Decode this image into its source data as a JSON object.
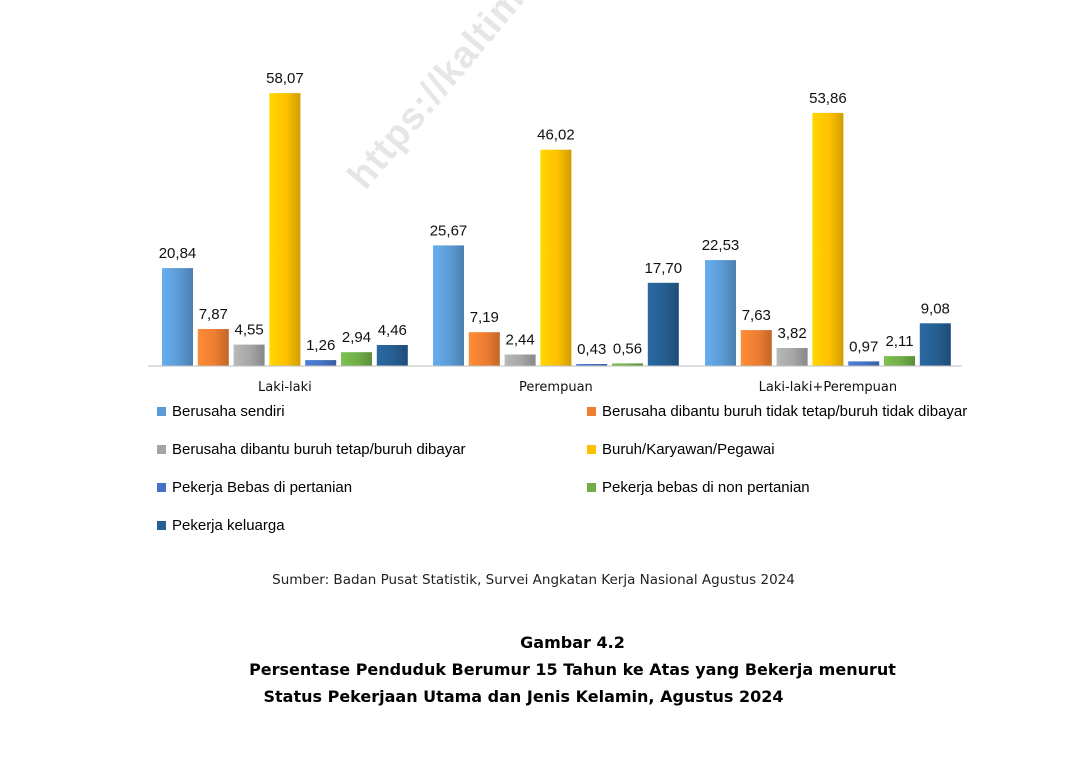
{
  "watermark": "https://kaltim.bps.go.id",
  "chart_data": {
    "type": "bar",
    "categories": [
      "Laki-laki",
      "Perempuan",
      "Laki-laki+Perempuan"
    ],
    "series": [
      {
        "name": "Berusaha sendiri",
        "values": [
          20.84,
          25.67,
          22.53
        ],
        "labels": [
          "20,84",
          "25,67",
          "22,53"
        ],
        "color": "#5b9bd5"
      },
      {
        "name": "Berusaha dibantu buruh tidak tetap/buruh tidak dibayar",
        "values": [
          7.87,
          7.19,
          7.63
        ],
        "labels": [
          "7,87",
          "7,19",
          "7,63"
        ],
        "color": "#ed7d31"
      },
      {
        "name": "Berusaha dibantu buruh tetap/buruh dibayar",
        "values": [
          4.55,
          2.44,
          3.82
        ],
        "labels": [
          "4,55",
          "2,44",
          "3,82"
        ],
        "color": "#a5a5a5"
      },
      {
        "name": "Buruh/Karyawan/Pegawai",
        "values": [
          58.07,
          46.02,
          53.86
        ],
        "labels": [
          "58,07",
          "46,02",
          "53,86"
        ],
        "color": "#ffc000"
      },
      {
        "name": "Pekerja Bebas di pertanian",
        "values": [
          1.26,
          0.43,
          0.97
        ],
        "labels": [
          "1,26",
          "0,43",
          "0,97"
        ],
        "color": "#4472c4"
      },
      {
        "name": "Pekerja bebas di non pertanian",
        "values": [
          2.94,
          0.56,
          2.11
        ],
        "labels": [
          "2,94",
          "0,56",
          "2,11"
        ],
        "color": "#70ad47"
      },
      {
        "name": "Pekerja keluarga",
        "values": [
          4.46,
          17.7,
          9.08
        ],
        "labels": [
          "4,46",
          "17,70",
          "9,08"
        ],
        "color": "#255e91"
      }
    ],
    "ylim": [
      0,
      60
    ],
    "grid": false,
    "legend_position": "bottom"
  },
  "source": "Sumber: Badan Pusat Statistik, Survei Angkatan Kerja Nasional Agustus 2024",
  "figure": {
    "number": "Gambar 4.2",
    "title_line1": "Persentase Penduduk Berumur 15 Tahun ke Atas yang Bekerja menurut",
    "title_line2": "Status Pekerjaan Utama dan Jenis Kelamin, Agustus 2024"
  }
}
